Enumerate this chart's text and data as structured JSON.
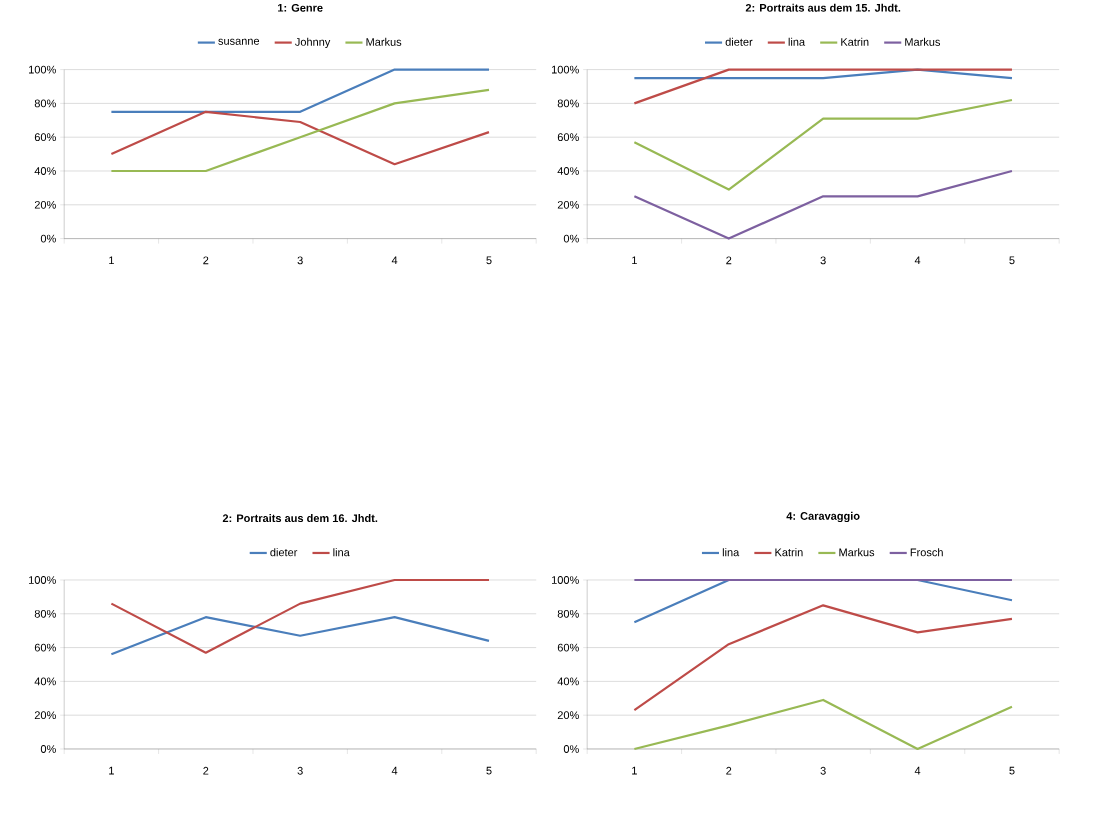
{
  "chart_data": [
    {
      "type": "line",
      "title": "1: Genre",
      "categories": [
        "1",
        "2",
        "3",
        "4",
        "5"
      ],
      "legend": "top",
      "grid": "y",
      "ylim": [
        0,
        100
      ],
      "yticks": [
        {
          "value": 0,
          "label": "0%"
        },
        {
          "value": 20,
          "label": "20%"
        },
        {
          "value": 40,
          "label": "40%"
        },
        {
          "value": 60,
          "label": "60%"
        },
        {
          "value": 80,
          "label": "80%"
        },
        {
          "value": 100,
          "label": "100%"
        }
      ],
      "series": [
        {
          "name": "susanne",
          "color": "#4a7ebb",
          "values": [
            75,
            75,
            75,
            100,
            100
          ]
        },
        {
          "name": "Johnny",
          "color": "#be4b48",
          "values": [
            50,
            75,
            69,
            44,
            63
          ]
        },
        {
          "name": "Markus",
          "color": "#98b954",
          "values": [
            40,
            40,
            60,
            80,
            88
          ]
        }
      ]
    },
    {
      "type": "line",
      "title": "2: Portraits aus dem 15. Jhdt.",
      "categories": [
        "1",
        "2",
        "3",
        "4",
        "5"
      ],
      "legend": "top",
      "grid": "y",
      "ylim": [
        0,
        100
      ],
      "yticks": [
        {
          "value": 0,
          "label": "0%"
        },
        {
          "value": 20,
          "label": "20%"
        },
        {
          "value": 40,
          "label": "40%"
        },
        {
          "value": 60,
          "label": "60%"
        },
        {
          "value": 80,
          "label": "80%"
        },
        {
          "value": 100,
          "label": "100%"
        }
      ],
      "series": [
        {
          "name": "dieter",
          "color": "#4a7ebb",
          "values": [
            95,
            95,
            95,
            100,
            95
          ]
        },
        {
          "name": "lina",
          "color": "#be4b48",
          "values": [
            80,
            100,
            100,
            100,
            100
          ]
        },
        {
          "name": "Katrin",
          "color": "#98b954",
          "values": [
            57,
            29,
            71,
            71,
            82
          ]
        },
        {
          "name": "Markus",
          "color": "#7d60a0",
          "values": [
            25,
            0,
            25,
            25,
            40
          ]
        }
      ]
    },
    {
      "type": "line",
      "title": "2: Portraits aus dem 16. Jhdt.",
      "categories": [
        "1",
        "2",
        "3",
        "4",
        "5"
      ],
      "legend": "top",
      "grid": "y",
      "ylim": [
        0,
        100
      ],
      "yticks": [
        {
          "value": 0,
          "label": "0%"
        },
        {
          "value": 20,
          "label": "20%"
        },
        {
          "value": 40,
          "label": "40%"
        },
        {
          "value": 60,
          "label": "60%"
        },
        {
          "value": 80,
          "label": "80%"
        },
        {
          "value": 100,
          "label": "100%"
        }
      ],
      "series": [
        {
          "name": "dieter",
          "color": "#4a7ebb",
          "values": [
            56,
            78,
            67,
            78,
            64
          ]
        },
        {
          "name": "lina",
          "color": "#be4b48",
          "values": [
            86,
            57,
            86,
            100,
            100
          ]
        }
      ]
    },
    {
      "type": "line",
      "title": "4: Caravaggio",
      "categories": [
        "1",
        "2",
        "3",
        "4",
        "5"
      ],
      "legend": "top",
      "grid": "y",
      "ylim": [
        0,
        100
      ],
      "yticks": [
        {
          "value": 0,
          "label": "0%"
        },
        {
          "value": 20,
          "label": "20%"
        },
        {
          "value": 40,
          "label": "40%"
        },
        {
          "value": 60,
          "label": "60%"
        },
        {
          "value": 80,
          "label": "80%"
        },
        {
          "value": 100,
          "label": "100%"
        }
      ],
      "series": [
        {
          "name": "lina",
          "color": "#4a7ebb",
          "values": [
            75,
            100,
            100,
            100,
            88
          ]
        },
        {
          "name": "Katrin",
          "color": "#be4b48",
          "values": [
            23,
            62,
            85,
            69,
            77
          ]
        },
        {
          "name": "Markus",
          "color": "#98b954",
          "values": [
            0,
            14,
            29,
            0,
            25
          ]
        },
        {
          "name": "Frosch",
          "color": "#7d60a0",
          "values": [
            100,
            100,
            100,
            100,
            100
          ]
        }
      ]
    }
  ]
}
